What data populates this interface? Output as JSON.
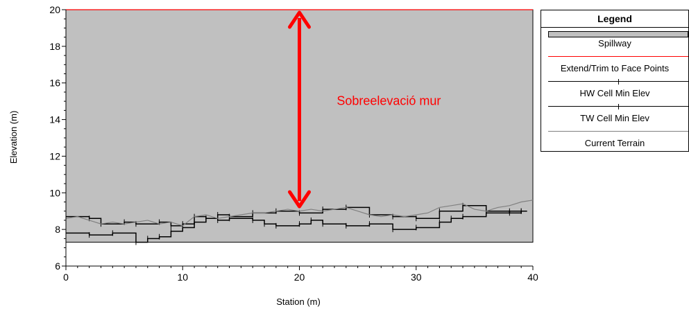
{
  "chart_data": {
    "type": "line",
    "xlabel": "Station (m)",
    "ylabel": "Elevation (m)",
    "xlim": [
      0,
      40
    ],
    "ylim": [
      6,
      20
    ],
    "x_ticks": [
      0,
      10,
      20,
      30,
      40
    ],
    "y_ticks": [
      6,
      8,
      10,
      12,
      14,
      16,
      18,
      20
    ],
    "grid": false,
    "series": [
      {
        "name": "Spillway",
        "kind": "filled-area",
        "color": "#c0c0c0",
        "x": [
          0,
          40
        ],
        "y_top": [
          20,
          20
        ],
        "y_bottom": [
          7.3,
          7.3
        ]
      },
      {
        "name": "Extend/Trim to Face Points",
        "kind": "line",
        "color": "#ff0000",
        "x": [
          0,
          40
        ],
        "y": [
          20,
          20
        ]
      },
      {
        "name": "HW Cell Min Elev",
        "kind": "step-with-markers",
        "color": "#000000",
        "x": [
          0,
          2,
          3,
          5,
          6,
          8,
          9,
          10,
          11,
          12,
          13,
          14,
          16,
          18,
          20,
          22,
          24,
          26,
          28,
          30,
          32,
          34,
          36,
          38,
          39
        ],
        "y": [
          8.7,
          8.6,
          8.3,
          8.4,
          8.3,
          8.4,
          8.2,
          8.3,
          8.7,
          8.6,
          8.8,
          8.7,
          8.9,
          9.0,
          8.9,
          9.1,
          9.2,
          8.8,
          8.7,
          8.6,
          9.0,
          9.3,
          9.0,
          8.9,
          9.0
        ]
      },
      {
        "name": "TW Cell Min Elev",
        "kind": "step-with-markers",
        "color": "#000000",
        "x": [
          0,
          2,
          4,
          6,
          7,
          8,
          9,
          10,
          11,
          12,
          13,
          14,
          16,
          17,
          18,
          20,
          21,
          22,
          24,
          26,
          28,
          30,
          32,
          33,
          34,
          36,
          38,
          39
        ],
        "y": [
          7.8,
          7.7,
          7.8,
          7.3,
          7.5,
          7.6,
          7.9,
          8.1,
          8.4,
          8.6,
          8.5,
          8.6,
          8.5,
          8.3,
          8.2,
          8.3,
          8.5,
          8.3,
          8.2,
          8.3,
          8.0,
          8.1,
          8.4,
          8.6,
          8.7,
          8.9,
          9.0,
          9.0
        ]
      },
      {
        "name": "Current Terrain",
        "kind": "line",
        "color": "#808080",
        "x": [
          0,
          1,
          2,
          3,
          4,
          5,
          6,
          7,
          8,
          9,
          10,
          11,
          12,
          13,
          14,
          15,
          16,
          17,
          18,
          19,
          20,
          21,
          22,
          23,
          24,
          25,
          26,
          27,
          28,
          29,
          30,
          31,
          32,
          33,
          34,
          35,
          36,
          37,
          38,
          39,
          40
        ],
        "y": [
          8.6,
          8.7,
          8.5,
          8.3,
          8.4,
          8.3,
          8.4,
          8.5,
          8.3,
          8.4,
          8.2,
          8.7,
          8.8,
          8.6,
          8.7,
          8.8,
          8.9,
          8.9,
          9.0,
          9.1,
          9.0,
          9.1,
          9.0,
          9.1,
          9.2,
          9.0,
          8.8,
          8.7,
          8.8,
          8.7,
          8.8,
          8.9,
          9.2,
          9.3,
          9.4,
          9.1,
          9.0,
          9.2,
          9.3,
          9.5,
          9.6
        ]
      }
    ],
    "annotations": [
      {
        "type": "double-arrow",
        "color": "#ff0000",
        "x": 20,
        "y_start": 20,
        "y_end": 9.1,
        "text": "Sobreelevació mur",
        "text_x": 23.2,
        "text_y": 14.8
      }
    ]
  },
  "legend": {
    "title": "Legend",
    "entries": [
      {
        "label": "Spillway",
        "swatch": "fill",
        "color": "#c0c0c0"
      },
      {
        "label": "Extend/Trim to Face Points",
        "swatch": "line",
        "color": "#ff0000"
      },
      {
        "label": "HW Cell Min Elev",
        "swatch": "line-marker",
        "color": "#000000"
      },
      {
        "label": "TW Cell Min Elev",
        "swatch": "line-marker",
        "color": "#000000"
      },
      {
        "label": "Current Terrain",
        "swatch": "line",
        "color": "#808080"
      }
    ]
  }
}
